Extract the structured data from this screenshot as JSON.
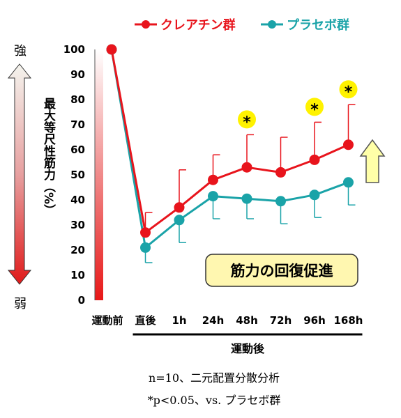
{
  "chart_data": {
    "type": "line",
    "categories": [
      "運動前",
      "直後",
      "1h",
      "24h",
      "48h",
      "72h",
      "96h",
      "168h"
    ],
    "series": [
      {
        "name": "クレアチン群",
        "color": "#e8141c",
        "values": [
          100,
          27,
          37,
          48,
          53,
          51,
          56,
          62
        ],
        "error_plus": [
          0,
          8,
          15,
          10,
          13,
          14,
          15,
          16
        ]
      },
      {
        "name": "プラセボ群",
        "color": "#1aa3a8",
        "values": [
          100,
          21,
          32,
          41.5,
          40.5,
          39.5,
          42,
          47
        ],
        "error_minus": [
          0,
          6,
          9,
          9,
          8,
          9,
          9,
          9
        ]
      }
    ],
    "ylabel": "最大等尺性筋力（%）",
    "xlabel": "運動後",
    "ylim": [
      0,
      100
    ],
    "yticks": [
      0,
      10,
      20,
      30,
      40,
      50,
      60,
      70,
      80,
      90,
      100
    ],
    "significant": [
      "48h",
      "96h",
      "168h"
    ],
    "significance_mark": "*",
    "grid": false,
    "legend_position": "top-right"
  },
  "labels": {
    "strong": "強",
    "weak": "弱",
    "callout": "筋力の回復促進",
    "note_line1": "n=10、二元配置分散分析",
    "note_line2": "*p<0.05、vs. プラセボ群"
  },
  "colors": {
    "creatine": "#e8141c",
    "placebo": "#1aa3a8",
    "callout_fill": "#fff7b0",
    "star_fill": "#fff200",
    "up_arrow_fill": "#ffffa8"
  }
}
